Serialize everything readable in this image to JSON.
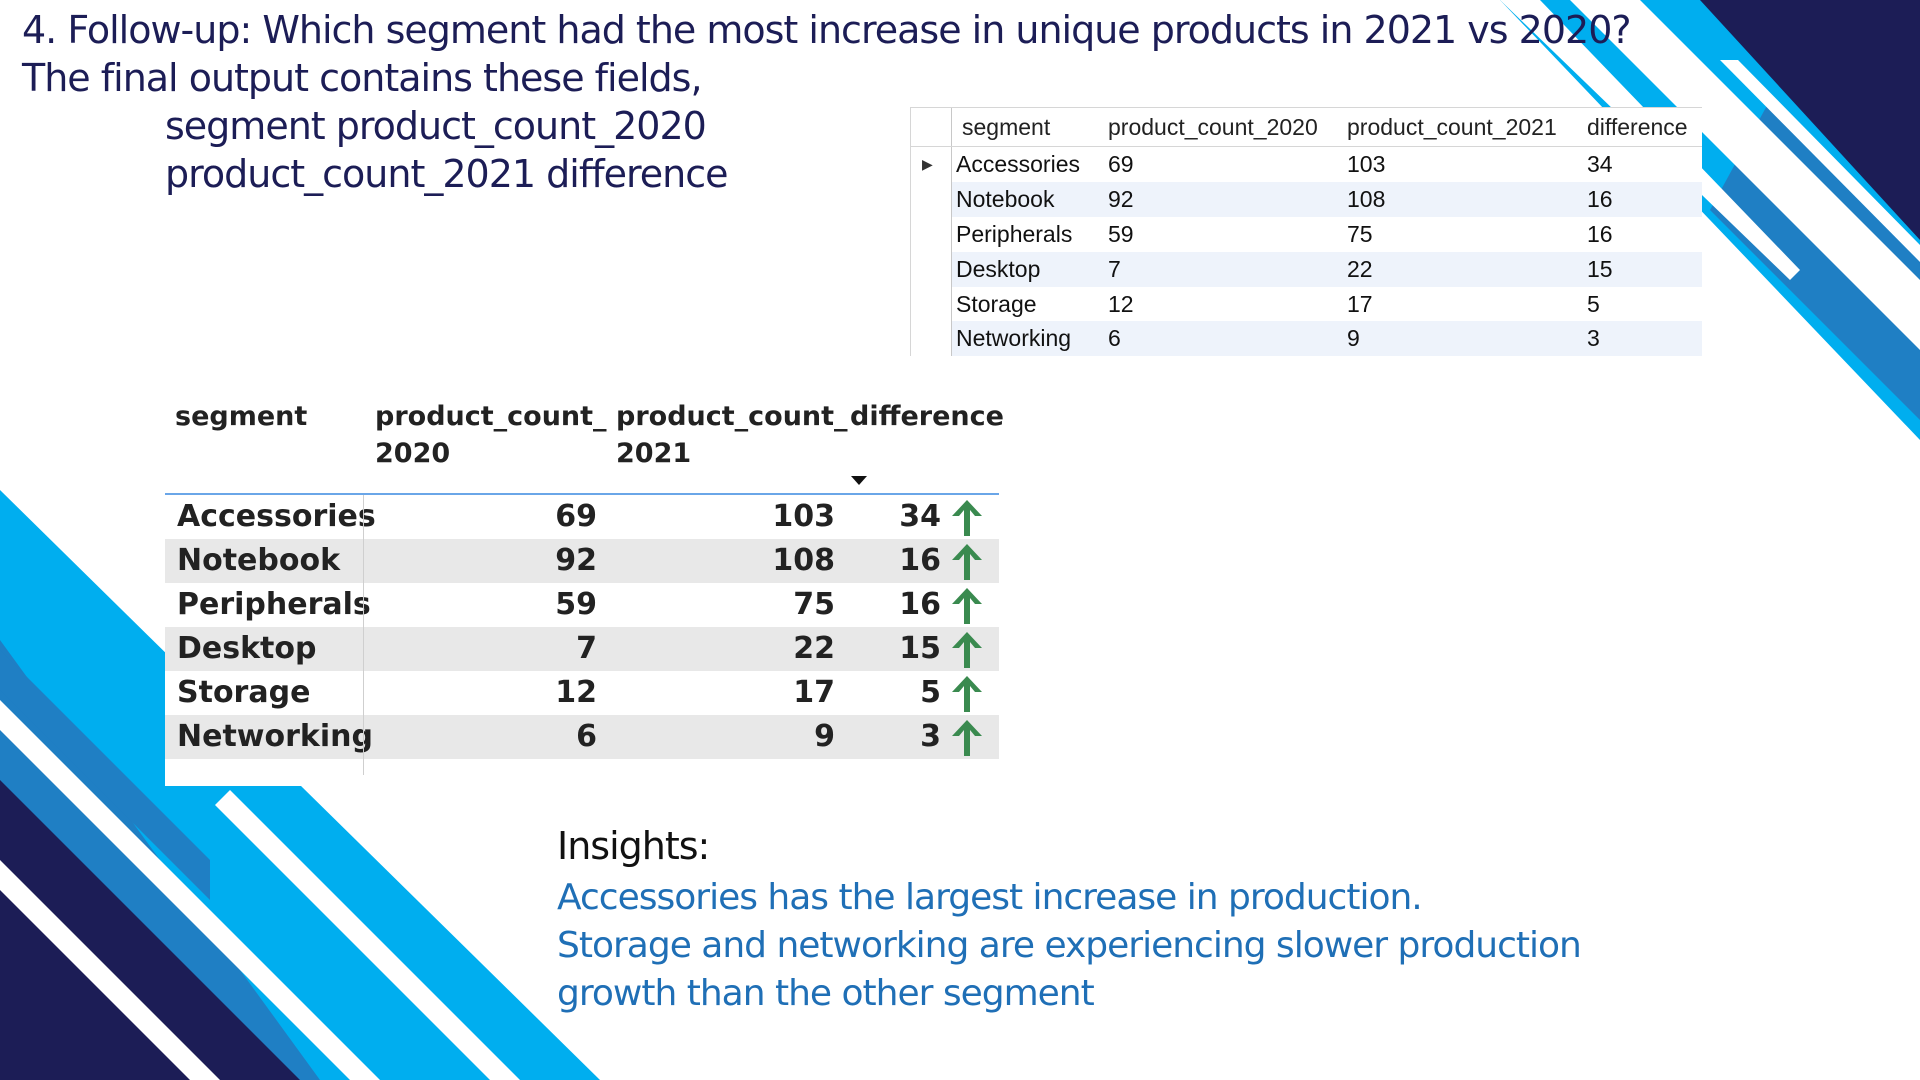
{
  "title": {
    "line1": "4. Follow-up: Which segment had the most increase in unique products in 2021 vs 2020?",
    "line2": "The final output contains these fields,"
  },
  "fields": {
    "line1": "segment product_count_2020",
    "line2": "product_count_2021 difference"
  },
  "sql_grid": {
    "headers": [
      "segment",
      "product_count_2020",
      "product_count_2021",
      "difference"
    ],
    "rows": [
      {
        "segment": "Accessories",
        "c2020": "69",
        "c2021": "103",
        "diff": "34"
      },
      {
        "segment": "Notebook",
        "c2020": "92",
        "c2021": "108",
        "diff": "16"
      },
      {
        "segment": "Peripherals",
        "c2020": "59",
        "c2021": "75",
        "diff": "16"
      },
      {
        "segment": "Desktop",
        "c2020": "7",
        "c2021": "22",
        "diff": "15"
      },
      {
        "segment": "Storage",
        "c2020": "12",
        "c2021": "17",
        "diff": "5"
      },
      {
        "segment": "Networking",
        "c2020": "6",
        "c2021": "9",
        "diff": "3"
      }
    ],
    "pointer_icon": "row-pointer-triangle-icon"
  },
  "pbi_table": {
    "headers": {
      "segment": "segment",
      "c2020_l1": "product_count_",
      "c2020_l2": "2020",
      "c2021_l1": "product_count_",
      "c2021_l2": "2021",
      "diff": "difference"
    },
    "rows": [
      {
        "segment": "Accessories",
        "c2020": "69",
        "c2021": "103",
        "diff": "34"
      },
      {
        "segment": "Notebook",
        "c2020": "92",
        "c2021": "108",
        "diff": "16"
      },
      {
        "segment": "Peripherals",
        "c2020": "59",
        "c2021": "75",
        "diff": "16"
      },
      {
        "segment": "Desktop",
        "c2020": "7",
        "c2021": "22",
        "diff": "15"
      },
      {
        "segment": "Storage",
        "c2020": "12",
        "c2021": "17",
        "diff": "5"
      },
      {
        "segment": "Networking",
        "c2020": "6",
        "c2021": "9",
        "diff": "3"
      }
    ],
    "arrow_icon": "green-up-arrow-icon",
    "arrow_color": "#3a8a4f"
  },
  "insights": {
    "heading": "Insights:",
    "line1": "Accessories has the largest increase in production.",
    "line2": "Storage and networking are experiencing slower production",
    "line3": "growth than the other segment"
  },
  "colors": {
    "navy": "#1c1d56",
    "bright_blue": "#00aeef",
    "mid_blue": "#1f7fc4",
    "insight_text": "#1f6fb6"
  }
}
